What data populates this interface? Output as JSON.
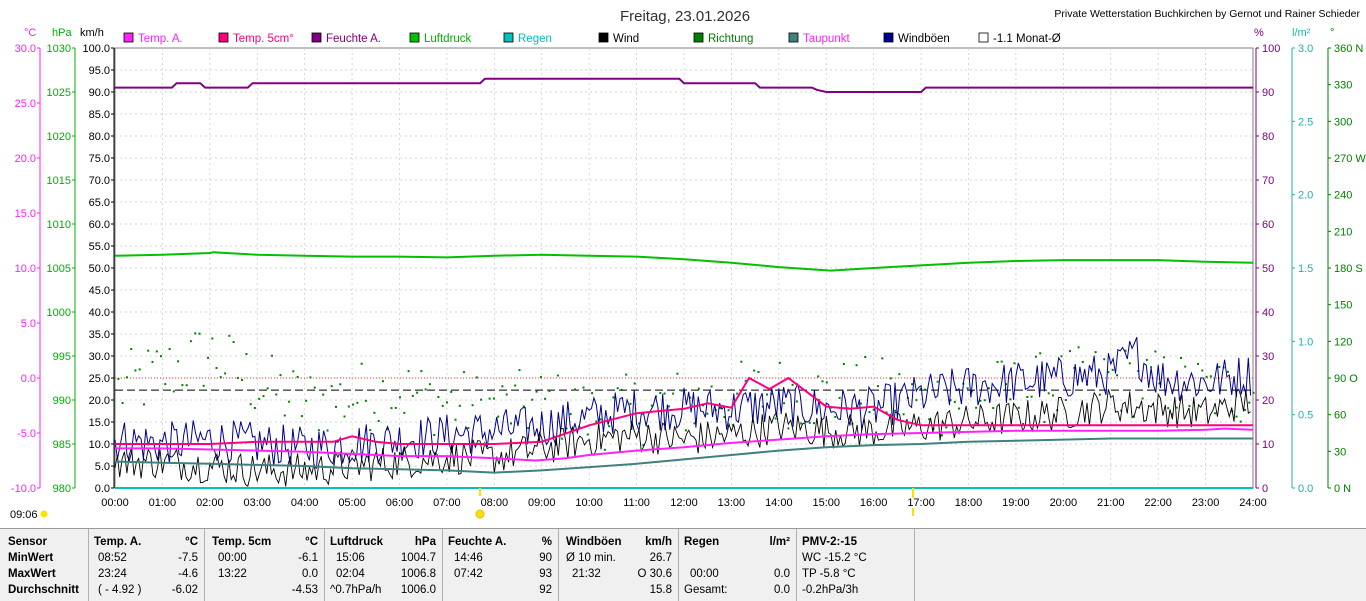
{
  "title": "Freitag, 23.01.2026",
  "site": "Private Wetterstation Buchkirchen by Gernot und Rainer Schieder",
  "now_time": "09:06",
  "colors": {
    "temp": "#ff20ff",
    "temp5": "#ff0080",
    "hum": "#800080",
    "press": "#00c000",
    "rain": "#00c0c0",
    "wind": "#000000",
    "dir": "#008000",
    "dew": "#408080",
    "gust": "#000090",
    "month": "#000000",
    "grid": "#c8c8c8"
  },
  "axes": {
    "left": [
      {
        "unit": "°C",
        "color": "#ff20ff",
        "ticks": [
          "30.0",
          "25.0",
          "20.0",
          "15.0",
          "10.0",
          "5.0",
          "0.0",
          "-5.0",
          "-10.0"
        ]
      },
      {
        "unit": "hPa",
        "color": "#00b000",
        "ticks": [
          "1030",
          "1025",
          "1020",
          "1015",
          "1010",
          "1005",
          "1000",
          "995",
          "990",
          "985",
          "980"
        ]
      },
      {
        "unit": "km/h",
        "color": "#000000",
        "ticks": [
          "100.0",
          "95.0",
          "90.0",
          "85.0",
          "80.0",
          "75.0",
          "70.0",
          "65.0",
          "60.0",
          "55.0",
          "50.0",
          "45.0",
          "40.0",
          "35.0",
          "30.0",
          "25.0",
          "20.0",
          "15.0",
          "10.0",
          "5.0",
          "0.0"
        ]
      }
    ],
    "right": [
      {
        "unit": "%",
        "color": "#800080",
        "ticks": [
          "100",
          "90",
          "80",
          "70",
          "60",
          "50",
          "40",
          "30",
          "20",
          "10",
          "0"
        ]
      },
      {
        "unit": "l/m²",
        "color": "#20b0b0",
        "ticks": [
          "3.0",
          "2.5",
          "2.0",
          "1.5",
          "1.0",
          "0.5",
          "0.0"
        ]
      },
      {
        "unit": "°",
        "color": "#008000",
        "ticks": [
          "360 N",
          "330",
          "300",
          "270 W",
          "240",
          "210",
          "180 S",
          "150",
          "120",
          "90 O",
          "60",
          "30",
          "0 N"
        ]
      }
    ],
    "x_ticks": [
      "00:00",
      "01:00",
      "02:00",
      "03:00",
      "04:00",
      "05:00",
      "06:00",
      "07:00",
      "08:00",
      "09:00",
      "10:00",
      "11:00",
      "12:00",
      "13:00",
      "14:00",
      "15:00",
      "16:00",
      "17:00",
      "18:00",
      "19:00",
      "20:00",
      "21:00",
      "22:00",
      "23:00",
      "24:00"
    ]
  },
  "legend": [
    {
      "label": "Temp. A.",
      "color": "#ff20ff",
      "text_color": "#ff20ff"
    },
    {
      "label": "Temp. 5cm°",
      "color": "#ff0080",
      "text_color": "#ff0080"
    },
    {
      "label": "Feuchte A.",
      "color": "#800080",
      "text_color": "#800080"
    },
    {
      "label": "Luftdruck",
      "color": "#00c000",
      "text_color": "#00b000"
    },
    {
      "label": "Regen",
      "color": "#00c0c0",
      "text_color": "#00c0c0"
    },
    {
      "label": "Wind",
      "color": "#000000",
      "text_color": "#000000"
    },
    {
      "label": "Richtung",
      "color": "#008000",
      "text_color": "#008000"
    },
    {
      "label": "Taupunkt",
      "color": "#408080",
      "text_color": "#ff20ff"
    },
    {
      "label": "Windböen",
      "color": "#000090",
      "text_color": "#000000"
    },
    {
      "label": "-1.1 Monat-Ø",
      "color": "#ffffff",
      "text_color": "#000000"
    }
  ],
  "chart_data": {
    "type": "line",
    "x_unit": "hours",
    "xlim": [
      0,
      24
    ],
    "axis_ranges": {
      "temp_c": [
        -10,
        30
      ],
      "pressure_hpa": [
        980,
        1030
      ],
      "wind_kmh": [
        0,
        100
      ],
      "humidity_pct": [
        0,
        100
      ],
      "rain_lm2": [
        0,
        3
      ],
      "direction_deg": [
        0,
        360
      ]
    },
    "grid": true,
    "reference_lines": {
      "month_avg_temp_c": -1.1,
      "zero_temp_c": 0.0
    },
    "series": [
      {
        "name": "Temp. A.",
        "unit": "°C",
        "points": [
          [
            0,
            -6.4
          ],
          [
            1,
            -6.4
          ],
          [
            2,
            -6.5
          ],
          [
            3,
            -6.6
          ],
          [
            4,
            -6.7
          ],
          [
            5,
            -6.9
          ],
          [
            6,
            -7.1
          ],
          [
            7,
            -7.1
          ],
          [
            8,
            -7.3
          ],
          [
            8.87,
            -7.5
          ],
          [
            9.5,
            -7.3
          ],
          [
            10,
            -7.0
          ],
          [
            11,
            -6.6
          ],
          [
            12,
            -6.3
          ],
          [
            13,
            -5.9
          ],
          [
            14,
            -5.6
          ],
          [
            15,
            -5.3
          ],
          [
            16,
            -5.1
          ],
          [
            17,
            -5.0
          ],
          [
            18,
            -4.9
          ],
          [
            19,
            -4.8
          ],
          [
            20,
            -4.8
          ],
          [
            21,
            -4.8
          ],
          [
            22,
            -4.8
          ],
          [
            23,
            -4.7
          ],
          [
            23.4,
            -4.6
          ],
          [
            24,
            -4.7
          ]
        ]
      },
      {
        "name": "Temp. 5cm°",
        "unit": "°C",
        "points": [
          [
            0,
            -6.0
          ],
          [
            1,
            -6.0
          ],
          [
            2,
            -6.0
          ],
          [
            3,
            -5.8
          ],
          [
            4,
            -5.8
          ],
          [
            4.6,
            -5.8
          ],
          [
            5,
            -5.3
          ],
          [
            5.5,
            -5.8
          ],
          [
            6,
            -6.0
          ],
          [
            7,
            -6.0
          ],
          [
            8,
            -6.0
          ],
          [
            9,
            -5.8
          ],
          [
            10,
            -4.3
          ],
          [
            11,
            -3.2
          ],
          [
            12,
            -2.8
          ],
          [
            12.5,
            -2.3
          ],
          [
            13,
            -2.7
          ],
          [
            13.37,
            0.0
          ],
          [
            13.8,
            -1.0
          ],
          [
            14.2,
            0.0
          ],
          [
            15,
            -2.6
          ],
          [
            15.5,
            -2.8
          ],
          [
            16,
            -2.6
          ],
          [
            16.5,
            -3.8
          ],
          [
            17,
            -4.3
          ],
          [
            18,
            -4.3
          ],
          [
            19,
            -4.3
          ],
          [
            20,
            -4.3
          ],
          [
            21,
            -4.3
          ],
          [
            22,
            -4.3
          ],
          [
            23,
            -4.3
          ],
          [
            24,
            -4.3
          ]
        ]
      },
      {
        "name": "Feuchte A.",
        "unit": "%",
        "points": [
          [
            0,
            91
          ],
          [
            1.2,
            91
          ],
          [
            1.3,
            92
          ],
          [
            1.8,
            92
          ],
          [
            1.9,
            91
          ],
          [
            2.8,
            91
          ],
          [
            2.9,
            92
          ],
          [
            7.7,
            92
          ],
          [
            7.8,
            93
          ],
          [
            8.3,
            93
          ],
          [
            8.4,
            93
          ],
          [
            11.9,
            93
          ],
          [
            12.0,
            92
          ],
          [
            13.5,
            92
          ],
          [
            13.6,
            91
          ],
          [
            14.7,
            91
          ],
          [
            14.8,
            90.5
          ],
          [
            15,
            90
          ],
          [
            17,
            90
          ],
          [
            17.1,
            91
          ],
          [
            24,
            91
          ]
        ]
      },
      {
        "name": "Luftdruck",
        "unit": "hPa",
        "points": [
          [
            0,
            1006.4
          ],
          [
            1,
            1006.5
          ],
          [
            2,
            1006.7
          ],
          [
            2.07,
            1006.8
          ],
          [
            3,
            1006.5
          ],
          [
            4,
            1006.4
          ],
          [
            5,
            1006.3
          ],
          [
            6,
            1006.3
          ],
          [
            7,
            1006.2
          ],
          [
            8,
            1006.4
          ],
          [
            9,
            1006.5
          ],
          [
            10,
            1006.4
          ],
          [
            11,
            1006.3
          ],
          [
            12,
            1006.0
          ],
          [
            13,
            1005.6
          ],
          [
            14,
            1005.1
          ],
          [
            15.1,
            1004.7
          ],
          [
            16,
            1005.0
          ],
          [
            17,
            1005.3
          ],
          [
            18,
            1005.6
          ],
          [
            19,
            1005.8
          ],
          [
            20,
            1005.9
          ],
          [
            21,
            1005.9
          ],
          [
            22,
            1005.9
          ],
          [
            23,
            1005.7
          ],
          [
            24,
            1005.6
          ]
        ]
      },
      {
        "name": "Regen",
        "unit": "l/m²",
        "points": [
          [
            0,
            0.0
          ],
          [
            24,
            0.0
          ]
        ]
      },
      {
        "name": "Wind",
        "unit": "km/h",
        "points": [
          [
            0,
            6
          ],
          [
            1,
            6
          ],
          [
            2,
            5
          ],
          [
            3,
            4
          ],
          [
            4,
            4
          ],
          [
            5,
            5
          ],
          [
            6,
            6
          ],
          [
            7,
            7
          ],
          [
            8,
            7
          ],
          [
            9,
            9
          ],
          [
            10,
            11
          ],
          [
            11,
            12
          ],
          [
            12,
            11
          ],
          [
            13,
            12
          ],
          [
            14,
            14
          ],
          [
            15,
            13
          ],
          [
            16,
            13
          ],
          [
            17,
            14
          ],
          [
            18,
            15
          ],
          [
            19,
            16
          ],
          [
            20,
            17
          ],
          [
            21,
            19
          ],
          [
            22,
            18
          ],
          [
            23,
            17
          ],
          [
            24,
            20
          ]
        ]
      },
      {
        "name": "Windböen",
        "unit": "km/h",
        "points": [
          [
            0,
            11
          ],
          [
            1,
            10
          ],
          [
            2,
            11
          ],
          [
            3,
            10
          ],
          [
            4,
            9
          ],
          [
            5,
            10
          ],
          [
            6,
            11
          ],
          [
            7,
            12
          ],
          [
            8,
            13
          ],
          [
            9,
            14
          ],
          [
            10,
            16
          ],
          [
            11,
            18
          ],
          [
            12,
            18
          ],
          [
            13,
            18
          ],
          [
            14,
            19
          ],
          [
            15,
            18
          ],
          [
            16,
            18
          ],
          [
            17,
            21
          ],
          [
            18,
            23
          ],
          [
            19,
            24
          ],
          [
            20,
            25
          ],
          [
            21,
            26
          ],
          [
            21.53,
            30.6
          ],
          [
            22,
            25
          ],
          [
            23,
            24
          ],
          [
            24,
            26
          ]
        ]
      },
      {
        "name": "Taupunkt",
        "unit": "°C",
        "points": [
          [
            0,
            -7.6
          ],
          [
            1,
            -7.7
          ],
          [
            2,
            -7.8
          ],
          [
            3,
            -7.9
          ],
          [
            4,
            -8.0
          ],
          [
            5,
            -8.2
          ],
          [
            6,
            -8.3
          ],
          [
            7,
            -8.4
          ],
          [
            8,
            -8.6
          ],
          [
            9,
            -8.4
          ],
          [
            10,
            -8.1
          ],
          [
            11,
            -7.8
          ],
          [
            12,
            -7.4
          ],
          [
            13,
            -7.0
          ],
          [
            14,
            -6.6
          ],
          [
            15,
            -6.3
          ],
          [
            16,
            -6.1
          ],
          [
            17,
            -6.0
          ],
          [
            18,
            -5.8
          ],
          [
            19,
            -5.7
          ],
          [
            20,
            -5.6
          ],
          [
            21,
            -5.5
          ],
          [
            22,
            -5.5
          ],
          [
            23,
            -5.5
          ],
          [
            24,
            -5.5
          ]
        ]
      },
      {
        "name": "Richtung",
        "unit": "°",
        "points": [
          [
            0,
            80
          ],
          [
            1,
            95
          ],
          [
            2,
            110
          ],
          [
            3,
            85
          ],
          [
            4,
            70
          ],
          [
            5,
            75
          ],
          [
            6,
            80
          ],
          [
            7,
            70
          ],
          [
            8,
            65
          ],
          [
            9,
            70
          ],
          [
            10,
            60
          ],
          [
            11,
            65
          ],
          [
            12,
            70
          ],
          [
            13,
            75
          ],
          [
            14,
            80
          ],
          [
            15,
            75
          ],
          [
            16,
            80
          ],
          [
            17,
            70
          ],
          [
            18,
            75
          ],
          [
            19,
            80
          ],
          [
            20,
            85
          ],
          [
            21,
            90
          ],
          [
            22,
            85
          ],
          [
            23,
            80
          ],
          [
            24,
            80
          ]
        ]
      }
    ]
  },
  "stats": {
    "row_labels": [
      "Sensor",
      "MinWert",
      "MaxWert",
      "Durchschnitt"
    ],
    "temp_a": {
      "name": "Temp. A.",
      "unit": "°C",
      "min_time": "08:52",
      "min": "-7.5",
      "max_time": "23:24",
      "max": "-4.6",
      "avg_time": "( - 4.92 )",
      "avg": "-6.02"
    },
    "temp_5": {
      "name": "Temp. 5cm",
      "unit": "°C",
      "min_time": "00:00",
      "min": "-6.1",
      "max_time": "13:22",
      "max": "0.0",
      "avg": "-4.53"
    },
    "press": {
      "name": "Luftdruck",
      "unit": "hPa",
      "min_time": "15:06",
      "min": "1004.7",
      "max_time": "02:04",
      "max": "1006.8",
      "trend": "^0.7hPa/h",
      "avg": "1006.0"
    },
    "hum": {
      "name": "Feuchte A.",
      "unit": "%",
      "min_time": "14:46",
      "min": "90",
      "max_time": "07:42",
      "max": "93",
      "avg": "92"
    },
    "gust": {
      "name": "Windböen",
      "unit": "km/h",
      "min_label": "Ø 10 min.",
      "min": "26.7",
      "max_time": "21:32",
      "max": "O 30.6",
      "avg": "15.8"
    },
    "rain": {
      "name": "Regen",
      "unit": "l/m²",
      "max_time": "00:00",
      "max": "0.0",
      "total_label": "Gesamt:",
      "total": "0.0"
    },
    "pmv": {
      "name": "PMV-2:-15",
      "wc": "WC -15.2 °C",
      "tp": "TP -5.8 °C",
      "trend": "-0.2hPa/3h"
    }
  }
}
